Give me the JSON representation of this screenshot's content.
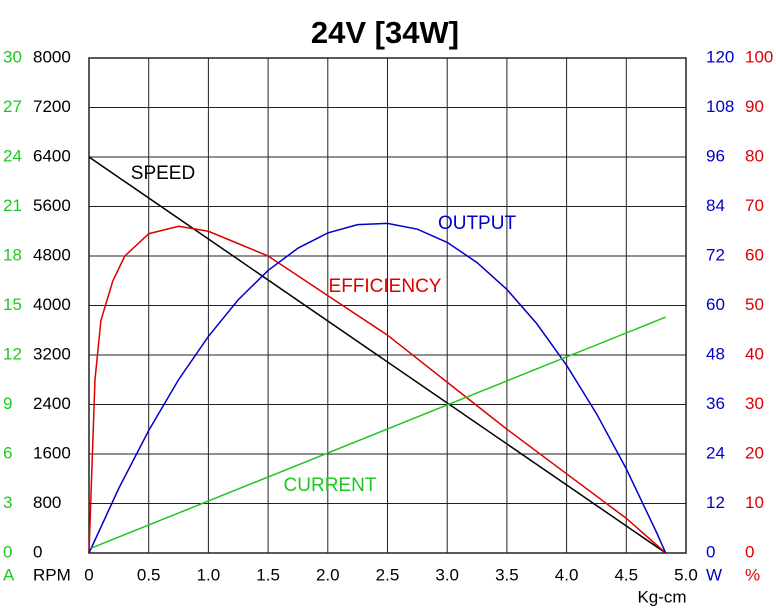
{
  "chart_data": {
    "type": "line",
    "title": "24V [34W]",
    "x_label": "Kg-cm",
    "xlim": [
      0,
      5.0
    ],
    "xticks": [
      0,
      0.5,
      {
        "value": 1,
        "label": "1.0"
      },
      1.5,
      {
        "value": 2,
        "label": "2.0"
      },
      2.5,
      {
        "value": 3,
        "label": "3.0"
      },
      3.5,
      {
        "value": 4,
        "label": "4.0"
      },
      4.5,
      {
        "value": 5,
        "label": "5.0"
      }
    ],
    "grid": true,
    "axes": [
      {
        "label": "A",
        "color": "#1fc81f",
        "lim": [
          0,
          30
        ],
        "ticks": [
          0,
          3,
          6,
          9,
          12,
          15,
          18,
          21,
          24,
          27,
          30
        ]
      },
      {
        "label": "RPM",
        "color": "#000000",
        "lim": [
          0,
          8000
        ],
        "ticks": [
          0,
          800,
          1600,
          2400,
          3200,
          4000,
          4800,
          5600,
          6400,
          7200,
          8000
        ]
      },
      {
        "label": "W",
        "color": "#0000cc",
        "lim": [
          0,
          120
        ],
        "ticks": [
          0,
          12,
          24,
          36,
          48,
          60,
          72,
          84,
          96,
          108,
          120
        ]
      },
      {
        "label": "%",
        "color": "#dd0000",
        "lim": [
          0,
          100
        ],
        "ticks": [
          0,
          10,
          20,
          30,
          40,
          50,
          60,
          70,
          80,
          90,
          100
        ]
      }
    ],
    "series": [
      {
        "name": "SPEED",
        "color": "#000000",
        "axis": 1,
        "x": [
          0,
          4.83
        ],
        "values": [
          6400,
          0
        ]
      },
      {
        "name": "EFFICIENCY",
        "color": "#dd0000",
        "axis": 3,
        "x": [
          0,
          0.05,
          0.1,
          0.2,
          0.3,
          0.5,
          0.75,
          1,
          1.25,
          1.5,
          2,
          2.5,
          3,
          3.5,
          4,
          4.5,
          4.83
        ],
        "values": [
          0,
          35,
          47,
          55,
          60,
          64.5,
          66,
          65,
          62.5,
          60,
          52,
          44,
          34.5,
          25,
          16,
          7,
          0
        ]
      },
      {
        "name": "OUTPUT",
        "color": "#0000cc",
        "axis": 2,
        "x": [
          0,
          0.25,
          0.5,
          0.75,
          1,
          1.25,
          1.5,
          1.75,
          2,
          2.25,
          2.5,
          2.75,
          3,
          3.25,
          3.5,
          3.75,
          4,
          4.25,
          4.5,
          4.75,
          4.83
        ],
        "values": [
          0,
          15.7,
          29.7,
          42,
          52.5,
          61.4,
          68.5,
          73.9,
          77.6,
          79.6,
          79.9,
          78.5,
          75.3,
          70.4,
          63.9,
          55.6,
          45.5,
          33.8,
          20.4,
          5.2,
          0
        ]
      },
      {
        "name": "CURRENT",
        "color": "#1fc81f",
        "axis": 0,
        "x": [
          0.02,
          4.83
        ],
        "values": [
          0.3,
          14.3
        ]
      }
    ]
  }
}
